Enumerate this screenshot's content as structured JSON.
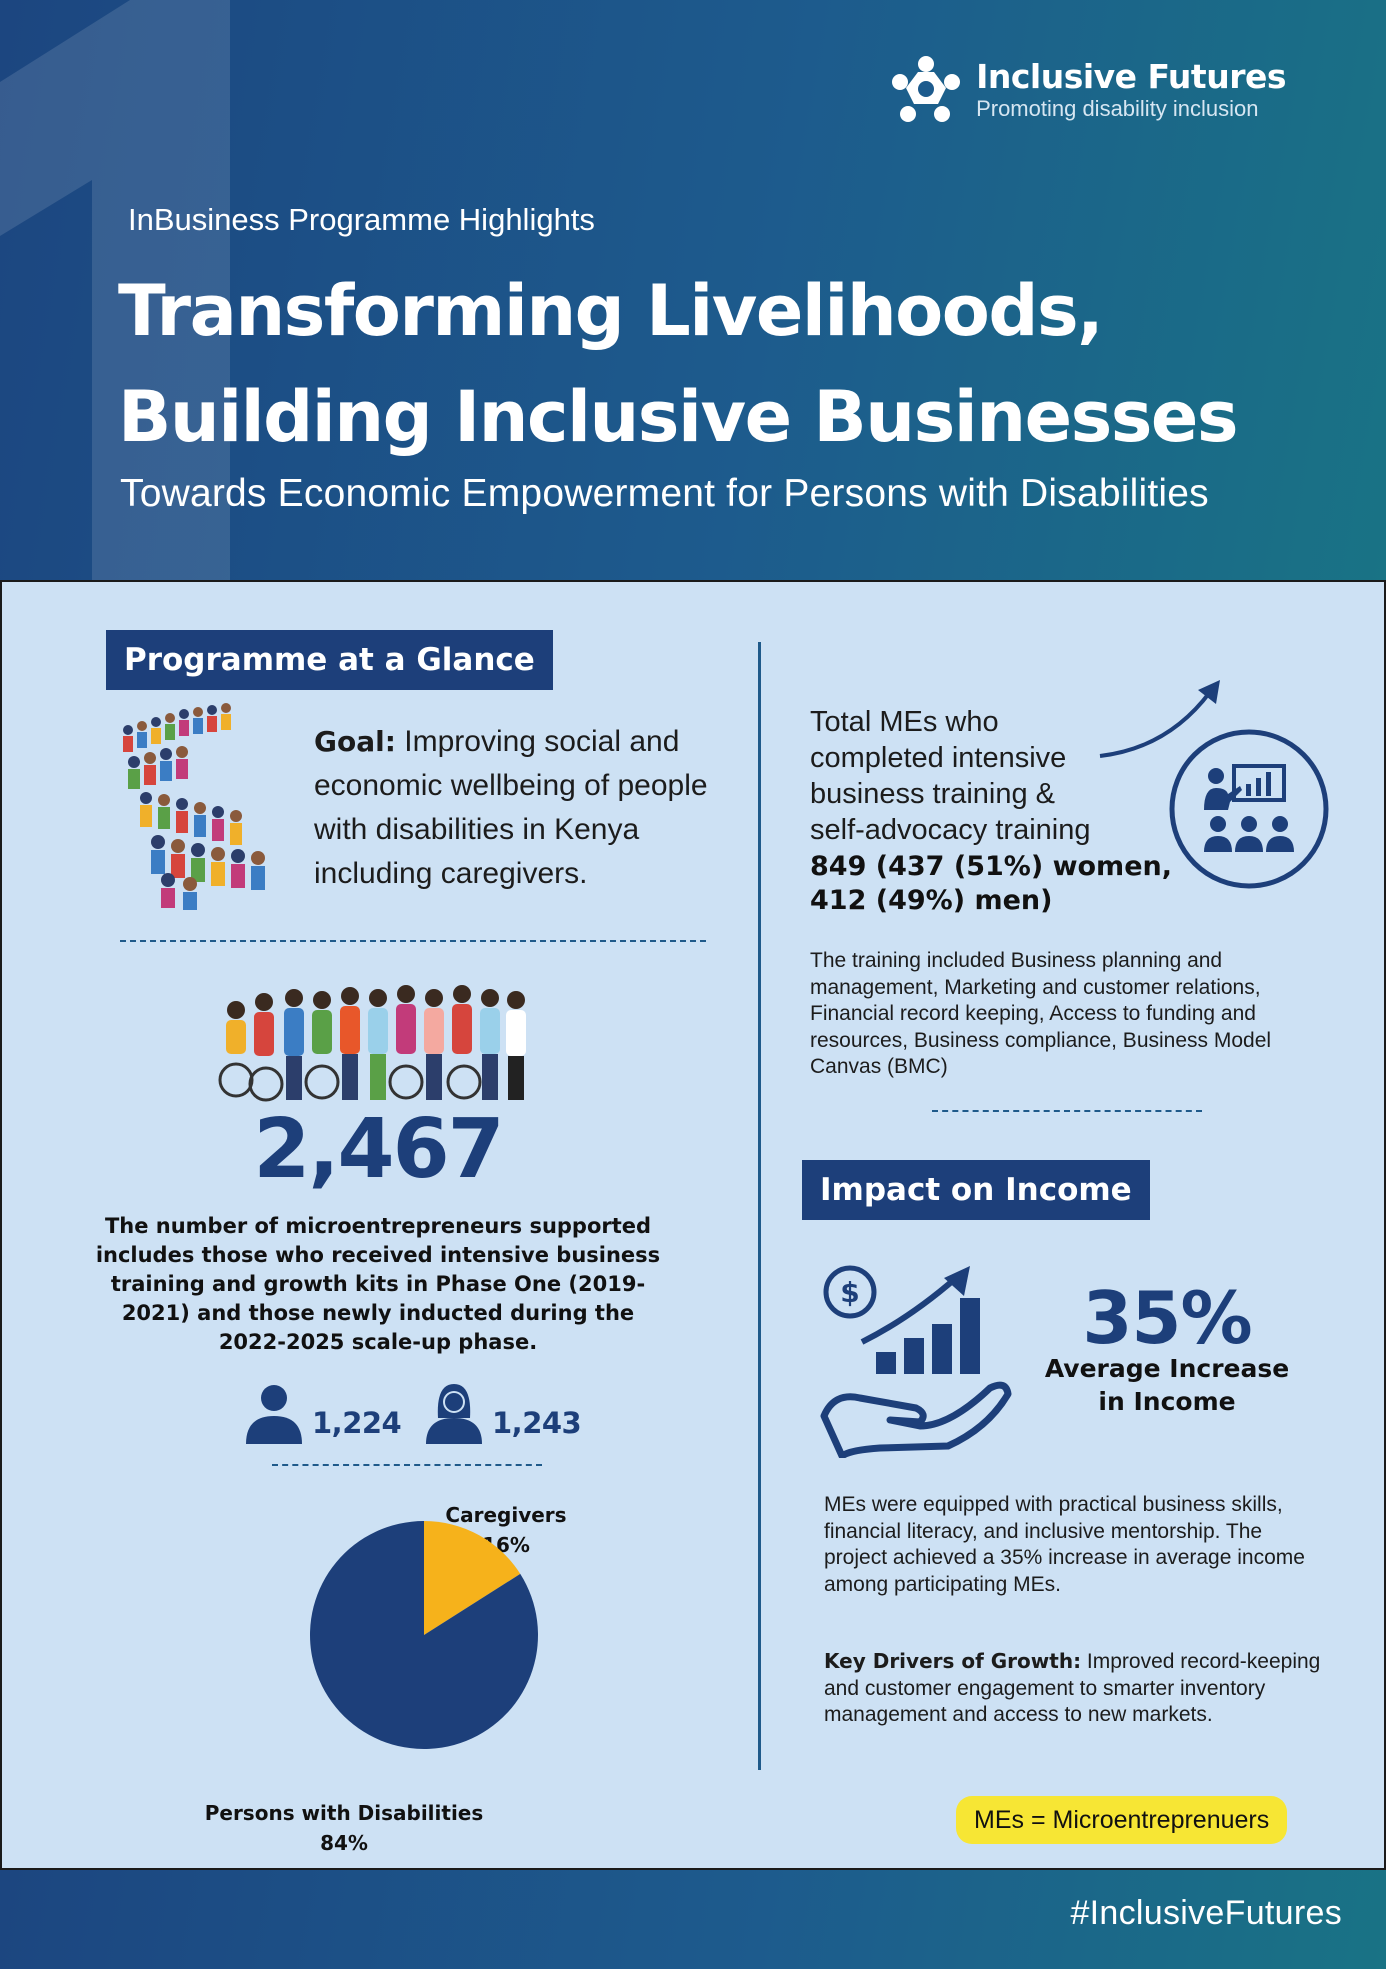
{
  "header": {
    "logo_name": "Inclusive Futures",
    "logo_tagline": "Promoting disability inclusion",
    "kicker": "InBusiness Programme Highlights",
    "title_line1": "Transforming Livelihoods,",
    "title_line2": "Building Inclusive Businesses",
    "subtitle": "Towards Economic Empowerment for Persons with Disabilities"
  },
  "glance": {
    "heading": "Programme at a Glance",
    "goal_label": "Goal:",
    "goal_text": " Improving social and economic wellbeing of people with disabilities in Kenya including caregivers.",
    "supported_count": "2,467",
    "supported_text": "The number of microentrepreneurs supported includes those who received intensive business training and growth kits in Phase One (2019-2021) and those newly inducted during the 2022-2025 scale-up phase.",
    "male_count": "1,224",
    "female_count": "1,243"
  },
  "chart_data": {
    "type": "pie",
    "slices": [
      {
        "label": "Caregivers",
        "value": 16,
        "display": "16%",
        "color": "#f6b21b"
      },
      {
        "label": "Persons with Disabilities",
        "value": 84,
        "display": "84%",
        "color": "#1d3f7a"
      }
    ]
  },
  "training": {
    "intro": "Total MEs who completed intensive business training & self-advocacy training",
    "stats_line1": "849 (437 (51%) women,",
    "stats_line2": "412 (49%) men)",
    "topics": "The training included Business planning and management, Marketing and customer relations, Financial record keeping, Access to funding and resources, Business compliance, Business Model Canvas (BMC)"
  },
  "impact": {
    "heading": "Impact on Income",
    "percent": "35%",
    "percent_label": "Average Increase in Income",
    "description": "MEs were equipped with practical business skills, financial literacy, and inclusive mentorship. The project achieved a 35% increase in average income among participating MEs.",
    "drivers_label": "Key Drivers of Growth:",
    "drivers_text": " Improved record-keeping and customer engagement to smarter inventory management and access to new markets.",
    "glossary": "MEs = Microentreprenuers"
  },
  "footer": {
    "hashtag": "#InclusiveFutures"
  },
  "colors": {
    "navy": "#1d3f7a",
    "panel": "#cde1f4",
    "accent_yellow": "#f6b21b",
    "glossary_yellow": "#f7e634"
  },
  "icons": {
    "logo": "inclusive-futures-logo-icon",
    "male": "male-person-icon",
    "female": "female-person-icon",
    "training": "presentation-audience-icon",
    "income": "hand-money-growth-icon"
  }
}
